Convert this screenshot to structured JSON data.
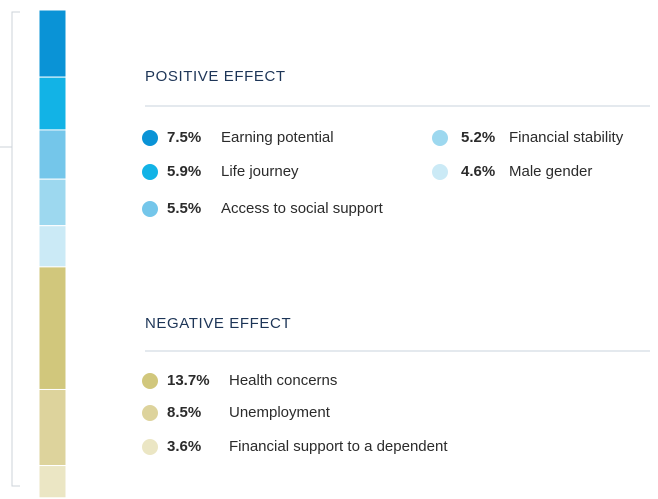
{
  "chart_data": {
    "type": "stacked-bar",
    "groups": [
      {
        "title": "POSITIVE EFFECT",
        "categories": [
          "Earning potential",
          "Life journey",
          "Access to social support",
          "Financial stability",
          "Male gender"
        ],
        "values": [
          7.5,
          5.9,
          5.5,
          5.2,
          4.6
        ],
        "value_labels": [
          "7.5%",
          "5.9%",
          "5.5%",
          "5.2%",
          "4.6%"
        ],
        "colors": [
          "#0a93d6",
          "#12b3e6",
          "#74c6ea",
          "#9dd8ef",
          "#cbeaf6"
        ]
      },
      {
        "title": "NEGATIVE EFFECT",
        "categories": [
          "Health concerns",
          "Unemployment",
          "Financial support to a dependent"
        ],
        "values": [
          13.7,
          8.5,
          3.6
        ],
        "value_labels": [
          "13.7%",
          "8.5%",
          "3.6%"
        ],
        "colors": [
          "#d1c77c",
          "#ddd39c",
          "#ebe6c4"
        ]
      }
    ]
  }
}
